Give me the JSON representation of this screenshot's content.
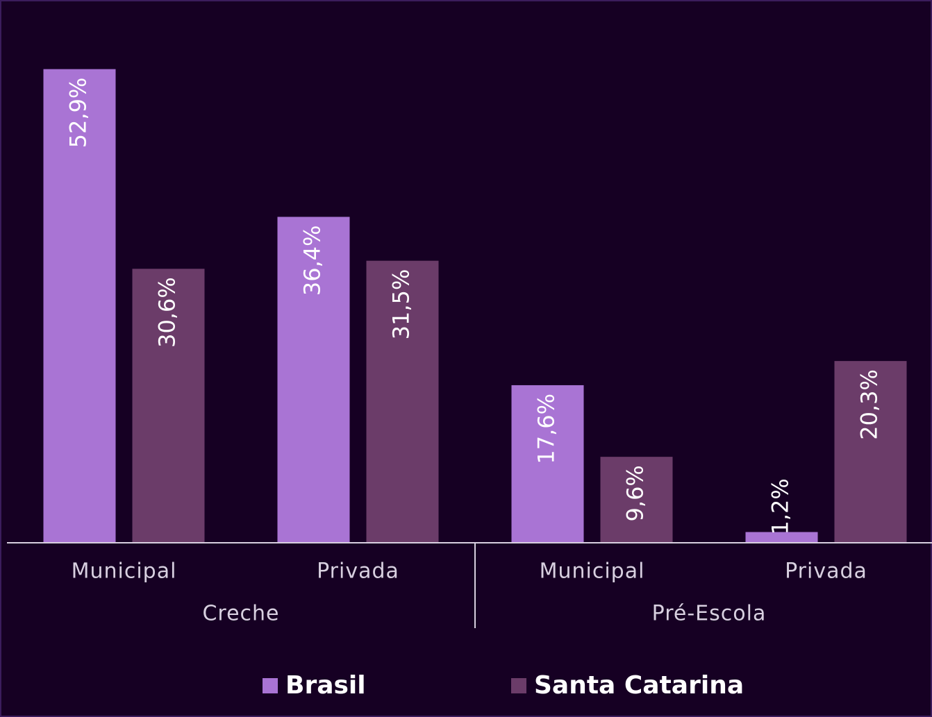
{
  "chart_data": {
    "type": "bar",
    "groups": [
      {
        "name": "Creche",
        "categories": [
          "Municipal",
          "Privada"
        ]
      },
      {
        "name": "Pré-Escola",
        "categories": [
          "Municipal",
          "Privada"
        ]
      }
    ],
    "series": [
      {
        "name": "Brasil",
        "color": "#a974d4",
        "values": [
          52.9,
          36.4,
          17.6,
          1.2
        ],
        "value_labels": [
          "52,9%",
          "36,4%",
          "17,6%",
          "1,2%"
        ]
      },
      {
        "name": "Santa Catarina",
        "color": "#6b3c69",
        "values": [
          30.6,
          31.5,
          9.6,
          20.3
        ],
        "value_labels": [
          "30,6%",
          "31,5%",
          "9,6%",
          "20,3%"
        ]
      }
    ],
    "ylim": [
      0,
      60
    ],
    "legend": "bottom"
  }
}
